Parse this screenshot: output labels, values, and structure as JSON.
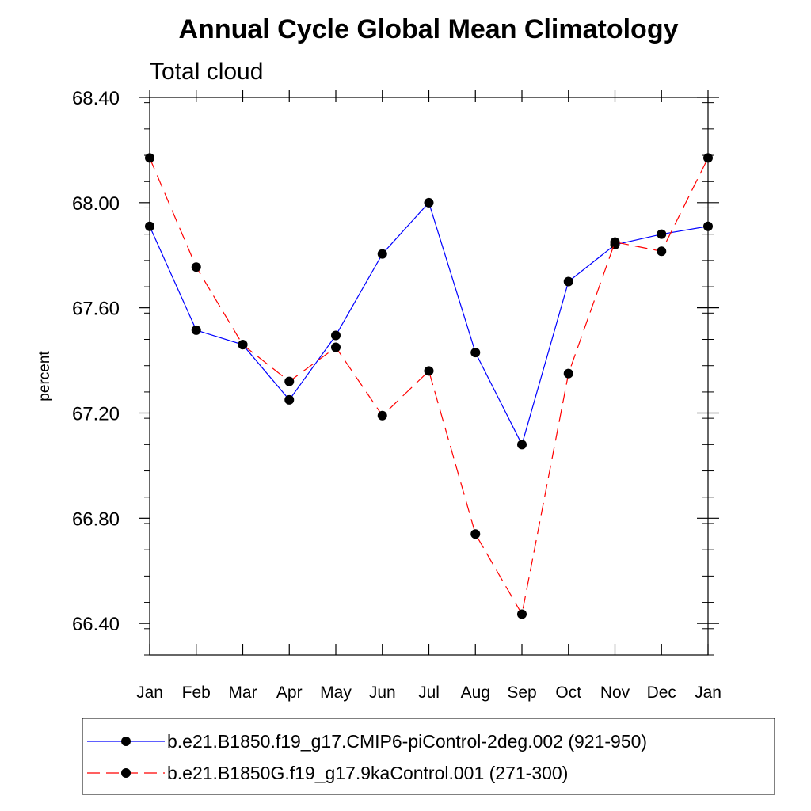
{
  "chart_data": {
    "type": "line",
    "title": "Annual Cycle Global Mean Climatology",
    "subtitle": "Total cloud",
    "xlabel": "",
    "ylabel": "percent",
    "categories": [
      "Jan",
      "Feb",
      "Mar",
      "Apr",
      "May",
      "Jun",
      "Jul",
      "Aug",
      "Sep",
      "Oct",
      "Nov",
      "Dec",
      "Jan"
    ],
    "ylim": [
      66.28,
      68.4
    ],
    "yticks": [
      66.4,
      66.8,
      67.2,
      67.6,
      68.0,
      68.4
    ],
    "ytick_labels": [
      "66.40",
      "66.80",
      "67.20",
      "67.60",
      "68.00",
      "68.40"
    ],
    "legend_position": "bottom",
    "series": [
      {
        "name": "b.e21.B1850.f19_g17.CMIP6-piControl-2deg.002 (921-950)",
        "color": "#0000ff",
        "dash": "solid",
        "values": [
          67.91,
          67.515,
          67.46,
          67.25,
          67.495,
          67.805,
          68.0,
          67.43,
          67.08,
          67.7,
          67.84,
          67.88,
          67.91
        ]
      },
      {
        "name": "b.e21.B1850G.f19_g17.9kaControl.001 (271-300)",
        "color": "#ff0000",
        "dash": "dashed",
        "values": [
          68.17,
          67.755,
          67.46,
          67.32,
          67.45,
          67.19,
          67.36,
          66.74,
          66.435,
          67.35,
          67.85,
          67.815,
          68.17
        ]
      }
    ]
  }
}
